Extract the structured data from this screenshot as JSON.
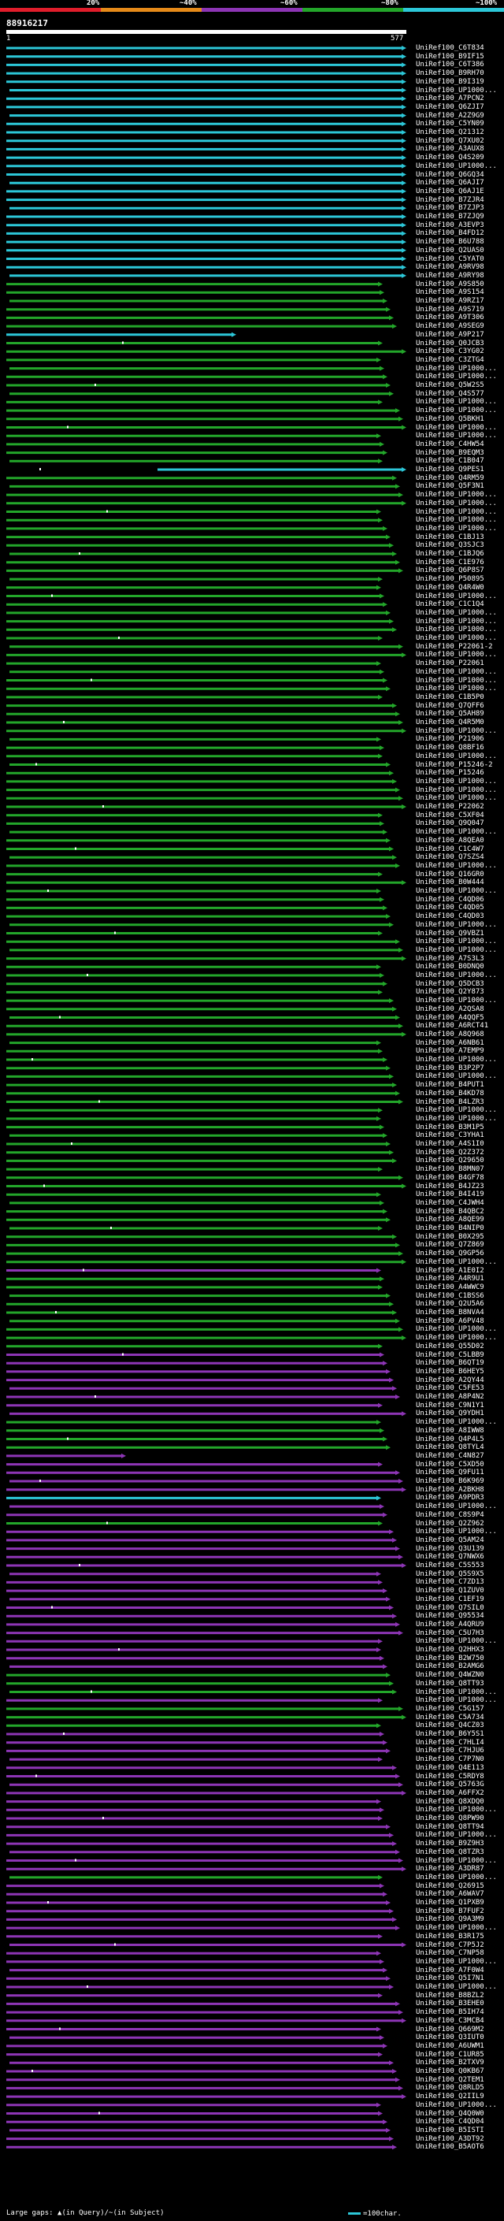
{
  "legend": {
    "labels": [
      "20%",
      "~40%",
      "~60%",
      "~80%",
      "~100%"
    ],
    "colors": [
      "#e11d2b",
      "#e68a19",
      "#8d35b5",
      "#23a62a",
      "#2cc7d8"
    ]
  },
  "query": {
    "id": "88916217",
    "start": "1",
    "end": "577"
  },
  "footer": {
    "text": "Large gaps: ▲(in Query)/~(in Subject)",
    "scale": "=100char."
  },
  "hits": [
    {
      "label": "UniRef100_C6T834",
      "color": "cyan"
    },
    {
      "label": "UniRef100_B9IF15",
      "color": "cyan"
    },
    {
      "label": "UniRef100_C6T386",
      "color": "cyan"
    },
    {
      "label": "UniRef100_B9RH70",
      "color": "cyan"
    },
    {
      "label": "UniRef100_B9I319",
      "color": "cyan"
    },
    {
      "label": "UniRef100_UP1000...",
      "color": "cyan"
    },
    {
      "label": "UniRef100_A7PCN2",
      "color": "cyan"
    },
    {
      "label": "UniRef100_Q6ZJI7",
      "color": "cyan"
    },
    {
      "label": "UniRef100_A2Z9G9",
      "color": "cyan"
    },
    {
      "label": "UniRef100_C5YN09",
      "color": "cyan"
    },
    {
      "label": "UniRef100_Q21312",
      "color": "cyan"
    },
    {
      "label": "UniRef100_Q7XU02",
      "color": "cyan"
    },
    {
      "label": "UniRef100_A3AUX8",
      "color": "cyan"
    },
    {
      "label": "UniRef100_Q4S209",
      "color": "cyan"
    },
    {
      "label": "UniRef100_UP1000...",
      "color": "cyan"
    },
    {
      "label": "UniRef100_Q6GQ34",
      "color": "cyan"
    },
    {
      "label": "UniRef100_Q6AJI7",
      "color": "cyan"
    },
    {
      "label": "UniRef100_Q6AJ1E",
      "color": "cyan"
    },
    {
      "label": "UniRef100_B7ZJR4",
      "color": "cyan"
    },
    {
      "label": "UniRef100_B7ZJP3",
      "color": "cyan"
    },
    {
      "label": "UniRef100_B7ZJQ9",
      "color": "cyan"
    },
    {
      "label": "UniRef100_A3EVP3",
      "color": "cyan"
    },
    {
      "label": "UniRef100_B4FD12",
      "color": "cyan"
    },
    {
      "label": "UniRef100_B6U788",
      "color": "cyan"
    },
    {
      "label": "UniRef100_Q2UAS0",
      "color": "cyan"
    },
    {
      "label": "UniRef100_C5YAT0",
      "color": "cyan"
    },
    {
      "label": "UniRef100_A9RV98",
      "color": "cyan"
    },
    {
      "label": "UniRef100_A9RY98",
      "color": "cyan"
    },
    {
      "label": "UniRef100_A9S850",
      "color": "green"
    },
    {
      "label": "UniRef100_A9S154",
      "color": "green"
    },
    {
      "label": "UniRef100_A9RZ17",
      "color": "green"
    },
    {
      "label": "UniRef100_A9S719",
      "color": "green"
    },
    {
      "label": "UniRef100_A9T306",
      "color": "green"
    },
    {
      "label": "UniRef100_A9SEG9",
      "color": "green"
    },
    {
      "label": "UniRef100_A9P217",
      "color": "cyan"
    },
    {
      "label": "UniRef100_Q0JCB3",
      "color": "green"
    },
    {
      "label": "UniRef100_C3YG02",
      "color": "green"
    },
    {
      "label": "UniRef100_C3ZTG4",
      "color": "green"
    },
    {
      "label": "UniRef100_UP1000...",
      "color": "green"
    },
    {
      "label": "UniRef100_UP1000...",
      "color": "green"
    },
    {
      "label": "UniRef100_Q5W2S5",
      "color": "green"
    },
    {
      "label": "UniRef100_Q4S577",
      "color": "green"
    },
    {
      "label": "UniRef100_UP1000...",
      "color": "green"
    },
    {
      "label": "UniRef100_UP1000...",
      "color": "green"
    },
    {
      "label": "UniRef100_Q5BKH1",
      "color": "green"
    },
    {
      "label": "UniRef100_UP1000...",
      "color": "green"
    },
    {
      "label": "UniRef100_UP1000...",
      "color": "green"
    },
    {
      "label": "UniRef100_C4HW54",
      "color": "green"
    },
    {
      "label": "UniRef100_B9EQM3",
      "color": "green"
    },
    {
      "label": "UniRef100_C1B047",
      "color": "green"
    },
    {
      "label": "UniRef100_Q9PES1",
      "color": "cyan"
    },
    {
      "label": "UniRef100_Q4RM59",
      "color": "green"
    },
    {
      "label": "UniRef100_Q5F3N1",
      "color": "green"
    },
    {
      "label": "UniRef100_UP1000...",
      "color": "green"
    },
    {
      "label": "UniRef100_UP1000...",
      "color": "green"
    },
    {
      "label": "UniRef100_UP1000...",
      "color": "green"
    },
    {
      "label": "UniRef100_UP1000...",
      "color": "green"
    },
    {
      "label": "UniRef100_UP1000...",
      "color": "green"
    },
    {
      "label": "UniRef100_C1BJ13",
      "color": "green"
    },
    {
      "label": "UniRef100_Q3SJC3",
      "color": "green"
    },
    {
      "label": "UniRef100_C1BJQ6",
      "color": "green"
    },
    {
      "label": "UniRef100_C1E976",
      "color": "green"
    },
    {
      "label": "UniRef100_Q6P8S7",
      "color": "green"
    },
    {
      "label": "UniRef100_P50895",
      "color": "green"
    },
    {
      "label": "UniRef100_Q4R4W0",
      "color": "green"
    },
    {
      "label": "UniRef100_UP1000...",
      "color": "green"
    },
    {
      "label": "UniRef100_C1C1Q4",
      "color": "green"
    },
    {
      "label": "UniRef100_UP1000...",
      "color": "green"
    },
    {
      "label": "UniRef100_UP1000...",
      "color": "green"
    },
    {
      "label": "UniRef100_UP1000...",
      "color": "green"
    },
    {
      "label": "UniRef100_UP1000...",
      "color": "green"
    },
    {
      "label": "UniRef100_P22061-2",
      "color": "green"
    },
    {
      "label": "UniRef100_UP1000...",
      "color": "green"
    },
    {
      "label": "UniRef100_P22061",
      "color": "green"
    },
    {
      "label": "UniRef100_UP1000...",
      "color": "green"
    },
    {
      "label": "UniRef100_UP1000...",
      "color": "green"
    },
    {
      "label": "UniRef100_UP1000...",
      "color": "green"
    },
    {
      "label": "UniRef100_C1B5P0",
      "color": "green"
    },
    {
      "label": "UniRef100_Q7QFF6",
      "color": "green"
    },
    {
      "label": "UniRef100_Q5AH89",
      "color": "green"
    },
    {
      "label": "UniRef100_Q4R5M0",
      "color": "green"
    },
    {
      "label": "UniRef100_UP1000...",
      "color": "green"
    },
    {
      "label": "UniRef100_P21906",
      "color": "green"
    },
    {
      "label": "UniRef100_Q8BF16",
      "color": "green"
    },
    {
      "label": "UniRef100_UP1000...",
      "color": "green"
    },
    {
      "label": "UniRef100_P15246-2",
      "color": "green"
    },
    {
      "label": "UniRef100_P15246",
      "color": "green"
    },
    {
      "label": "UniRef100_UP1000...",
      "color": "green"
    },
    {
      "label": "UniRef100_UP1000...",
      "color": "green"
    },
    {
      "label": "UniRef100_UP1000...",
      "color": "green"
    },
    {
      "label": "UniRef100_P22062",
      "color": "green"
    },
    {
      "label": "UniRef100_C5XF04",
      "color": "green"
    },
    {
      "label": "UniRef100_Q9Q047",
      "color": "green"
    },
    {
      "label": "UniRef100_UP1000...",
      "color": "green"
    },
    {
      "label": "UniRef100_A8QEA0",
      "color": "green"
    },
    {
      "label": "UniRef100_C1C4W7",
      "color": "green"
    },
    {
      "label": "UniRef100_Q7SZS4",
      "color": "green"
    },
    {
      "label": "UniRef100_UP1000...",
      "color": "green"
    },
    {
      "label": "UniRef100_Q16GR0",
      "color": "green"
    },
    {
      "label": "UniRef100_B0W444",
      "color": "green"
    },
    {
      "label": "UniRef100_UP1000...",
      "color": "green"
    },
    {
      "label": "UniRef100_C4QD06",
      "color": "green"
    },
    {
      "label": "UniRef100_C4QD05",
      "color": "green"
    },
    {
      "label": "UniRef100_C4QD03",
      "color": "green"
    },
    {
      "label": "UniRef100_UP1000...",
      "color": "green"
    },
    {
      "label": "UniRef100_Q9VBZ1",
      "color": "green"
    },
    {
      "label": "UniRef100_UP1000...",
      "color": "green"
    },
    {
      "label": "UniRef100_UP1000...",
      "color": "green"
    },
    {
      "label": "UniRef100_A7S3L3",
      "color": "green"
    },
    {
      "label": "UniRef100_B0DNQ0",
      "color": "green"
    },
    {
      "label": "UniRef100_UP1000...",
      "color": "green"
    },
    {
      "label": "UniRef100_Q5DCB3",
      "color": "green"
    },
    {
      "label": "UniRef100_Q2Y873",
      "color": "green"
    },
    {
      "label": "UniRef100_UP1000...",
      "color": "green"
    },
    {
      "label": "UniRef100_A2QSA8",
      "color": "green"
    },
    {
      "label": "UniRef100_A4QQF5",
      "color": "green"
    },
    {
      "label": "UniRef100_A6RCT41",
      "color": "green"
    },
    {
      "label": "UniRef100_A8Q968",
      "color": "green"
    },
    {
      "label": "UniRef100_A6NB61",
      "color": "green"
    },
    {
      "label": "UniRef100_A7EMP9",
      "color": "green"
    },
    {
      "label": "UniRef100_UP1000...",
      "color": "green"
    },
    {
      "label": "UniRef100_B3P2P7",
      "color": "green"
    },
    {
      "label": "UniRef100_UP1000...",
      "color": "green"
    },
    {
      "label": "UniRef100_B4PUT1",
      "color": "green"
    },
    {
      "label": "UniRef100_B4KD78",
      "color": "green"
    },
    {
      "label": "UniRef100_B4LZR3",
      "color": "green"
    },
    {
      "label": "UniRef100_UP1000...",
      "color": "green"
    },
    {
      "label": "UniRef100_UP1000...",
      "color": "green"
    },
    {
      "label": "UniRef100_B3M1P5",
      "color": "green"
    },
    {
      "label": "UniRef100_C3YHA1",
      "color": "green"
    },
    {
      "label": "UniRef100_A4S1I0",
      "color": "green"
    },
    {
      "label": "UniRef100_Q2Z372",
      "color": "green"
    },
    {
      "label": "UniRef100_Q29650",
      "color": "green"
    },
    {
      "label": "UniRef100_B8MN07",
      "color": "green"
    },
    {
      "label": "UniRef100_B4GF78",
      "color": "green"
    },
    {
      "label": "UniRef100_B4JZ23",
      "color": "green"
    },
    {
      "label": "UniRef100_B4I419",
      "color": "green"
    },
    {
      "label": "UniRef100_C4JWH4",
      "color": "green"
    },
    {
      "label": "UniRef100_B4QBC2",
      "color": "green"
    },
    {
      "label": "UniRef100_A8QE99",
      "color": "green"
    },
    {
      "label": "UniRef100_B4NIP0",
      "color": "green"
    },
    {
      "label": "UniRef100_B0X295",
      "color": "green"
    },
    {
      "label": "UniRef100_Q7Z869",
      "color": "green"
    },
    {
      "label": "UniRef100_Q9GP56",
      "color": "green"
    },
    {
      "label": "UniRef100_UP1000...",
      "color": "green"
    },
    {
      "label": "UniRef100_A1E0I2",
      "color": "magenta"
    },
    {
      "label": "UniRef100_A4R9U1",
      "color": "green"
    },
    {
      "label": "UniRef100_A4WWC9",
      "color": "green"
    },
    {
      "label": "UniRef100_C1BSS6",
      "color": "green"
    },
    {
      "label": "UniRef100_Q2U5A6",
      "color": "green"
    },
    {
      "label": "UniRef100_B8NVA4",
      "color": "green"
    },
    {
      "label": "UniRef100_A6PV48",
      "color": "green"
    },
    {
      "label": "UniRef100_UP1000...",
      "color": "green"
    },
    {
      "label": "UniRef100_UP1000...",
      "color": "green"
    },
    {
      "label": "UniRef100_Q55D02",
      "color": "green"
    },
    {
      "label": "UniRef100_C5LBB9",
      "color": "magenta"
    },
    {
      "label": "UniRef100_B6QT19",
      "color": "magenta"
    },
    {
      "label": "UniRef100_B6HEY5",
      "color": "magenta"
    },
    {
      "label": "UniRef100_A2QY44",
      "color": "magenta"
    },
    {
      "label": "UniRef100_C5FE53",
      "color": "magenta"
    },
    {
      "label": "UniRef100_A8P4N2",
      "color": "magenta"
    },
    {
      "label": "UniRef100_C9N1Y1",
      "color": "magenta"
    },
    {
      "label": "UniRef100_Q9YDH1",
      "color": "magenta"
    },
    {
      "label": "UniRef100_UP1000...",
      "color": "green"
    },
    {
      "label": "UniRef100_A8IWW8",
      "color": "green"
    },
    {
      "label": "UniRef100_Q4P4L5",
      "color": "green"
    },
    {
      "label": "UniRef100_Q8TYL4",
      "color": "green"
    },
    {
      "label": "UniRef100_C4N827",
      "color": "magenta"
    },
    {
      "label": "UniRef100_C5XD50",
      "color": "magenta"
    },
    {
      "label": "UniRef100_Q9FU11",
      "color": "magenta"
    },
    {
      "label": "UniRef100_B6K969",
      "color": "magenta"
    },
    {
      "label": "UniRef100_A2BKH8",
      "color": "magenta"
    },
    {
      "label": "UniRef100_A9PDR3",
      "color": "cyan"
    },
    {
      "label": "UniRef100_UP1000...",
      "color": "magenta"
    },
    {
      "label": "UniRef100_C8S9P4",
      "color": "magenta"
    },
    {
      "label": "UniRef100_Q2Z962",
      "color": "green"
    },
    {
      "label": "UniRef100_UP1000...",
      "color": "magenta"
    },
    {
      "label": "UniRef100_Q5AM24",
      "color": "magenta"
    },
    {
      "label": "UniRef100_Q3U139",
      "color": "magenta"
    },
    {
      "label": "UniRef100_Q7NWX6",
      "color": "magenta"
    },
    {
      "label": "UniRef100_C5S553",
      "color": "magenta"
    },
    {
      "label": "UniRef100_Q5S9X5",
      "color": "magenta"
    },
    {
      "label": "UniRef100_C7ZD13",
      "color": "magenta"
    },
    {
      "label": "UniRef100_Q1ZUV0",
      "color": "magenta"
    },
    {
      "label": "UniRef100_C1EF19",
      "color": "magenta"
    },
    {
      "label": "UniRef100_Q7SIL0",
      "color": "magenta"
    },
    {
      "label": "UniRef100_Q95534",
      "color": "magenta"
    },
    {
      "label": "UniRef100_A4QRU9",
      "color": "magenta"
    },
    {
      "label": "UniRef100_C5U7H3",
      "color": "magenta"
    },
    {
      "label": "UniRef100_UP1000...",
      "color": "magenta"
    },
    {
      "label": "UniRef100_Q2HHX3",
      "color": "magenta"
    },
    {
      "label": "UniRef100_B2W750",
      "color": "magenta"
    },
    {
      "label": "UniRef100_B2AMG6",
      "color": "magenta"
    },
    {
      "label": "UniRef100_Q4WZN0",
      "color": "green"
    },
    {
      "label": "UniRef100_Q8TT93",
      "color": "green"
    },
    {
      "label": "UniRef100_UP1000...",
      "color": "green"
    },
    {
      "label": "UniRef100_UP1000...",
      "color": "magenta"
    },
    {
      "label": "UniRef100_C5G157",
      "color": "green"
    },
    {
      "label": "UniRef100_C5A734",
      "color": "green"
    },
    {
      "label": "UniRef100_Q4CZ03",
      "color": "green"
    },
    {
      "label": "UniRef100_B6Y5S1",
      "color": "magenta"
    },
    {
      "label": "UniRef100_C7HLI4",
      "color": "magenta"
    },
    {
      "label": "UniRef100_C7HJU6",
      "color": "magenta"
    },
    {
      "label": "UniRef100_C7P7N0",
      "color": "magenta"
    },
    {
      "label": "UniRef100_Q4E113",
      "color": "magenta"
    },
    {
      "label": "UniRef100_C5RDY8",
      "color": "magenta"
    },
    {
      "label": "UniRef100_Q5763G",
      "color": "magenta"
    },
    {
      "label": "UniRef100_A6FFX2",
      "color": "magenta"
    },
    {
      "label": "UniRef100_Q8XDQ0",
      "color": "magenta"
    },
    {
      "label": "UniRef100_UP1000...",
      "color": "magenta"
    },
    {
      "label": "UniRef100_Q8PW90",
      "color": "magenta"
    },
    {
      "label": "UniRef100_Q8TT94",
      "color": "magenta"
    },
    {
      "label": "UniRef100_UP1000...",
      "color": "magenta"
    },
    {
      "label": "UniRef100_B9Z9H3",
      "color": "magenta"
    },
    {
      "label": "UniRef100_Q8TZR3",
      "color": "magenta"
    },
    {
      "label": "UniRef100_UP1000...",
      "color": "magenta"
    },
    {
      "label": "UniRef100_A3DR87",
      "color": "magenta"
    },
    {
      "label": "UniRef100_UP1000...",
      "color": "green"
    },
    {
      "label": "UniRef100_Q26915",
      "color": "magenta"
    },
    {
      "label": "UniRef100_A6WAV7",
      "color": "magenta"
    },
    {
      "label": "UniRef100_Q1PXB9",
      "color": "magenta"
    },
    {
      "label": "UniRef100_B7FUF2",
      "color": "magenta"
    },
    {
      "label": "UniRef100_Q9A3M9",
      "color": "magenta"
    },
    {
      "label": "UniRef100_UP1000...",
      "color": "magenta"
    },
    {
      "label": "UniRef100_B3R175",
      "color": "magenta"
    },
    {
      "label": "UniRef100_C7P5J2",
      "color": "magenta"
    },
    {
      "label": "UniRef100_C7NP58",
      "color": "magenta"
    },
    {
      "label": "UniRef100_UP1000...",
      "color": "magenta"
    },
    {
      "label": "UniRef100_A7F0W4",
      "color": "magenta"
    },
    {
      "label": "UniRef100_Q5I7N1",
      "color": "magenta"
    },
    {
      "label": "UniRef100_UP1000...",
      "color": "magenta"
    },
    {
      "label": "UniRef100_B8BZL2",
      "color": "magenta"
    },
    {
      "label": "UniRef100_B3EHE0",
      "color": "magenta"
    },
    {
      "label": "UniRef100_B5IH74",
      "color": "magenta"
    },
    {
      "label": "UniRef100_C3MCB4",
      "color": "magenta"
    },
    {
      "label": "UniRef100_Q669M2",
      "color": "magenta"
    },
    {
      "label": "UniRef100_Q3IUT0",
      "color": "magenta"
    },
    {
      "label": "UniRef100_A6UWM1",
      "color": "magenta"
    },
    {
      "label": "UniRef100_C1UR85",
      "color": "magenta"
    },
    {
      "label": "UniRef100_B2TXV9",
      "color": "magenta"
    },
    {
      "label": "UniRef100_Q0KB67",
      "color": "magenta"
    },
    {
      "label": "UniRef100_Q2TEM1",
      "color": "magenta"
    },
    {
      "label": "UniRef100_Q8RLD5",
      "color": "magenta"
    },
    {
      "label": "UniRef100_Q2IIL9",
      "color": "magenta"
    },
    {
      "label": "UniRef100_UP1000...",
      "color": "magenta"
    },
    {
      "label": "UniRef100_Q4Q0W0",
      "color": "magenta"
    },
    {
      "label": "UniRef100_C4QD04",
      "color": "magenta"
    },
    {
      "label": "UniRef100_B5ISTI",
      "color": "magenta"
    },
    {
      "label": "UniRef100_A3DT92",
      "color": "magenta"
    },
    {
      "label": "UniRef100_B5AOT6",
      "color": "magenta"
    }
  ]
}
